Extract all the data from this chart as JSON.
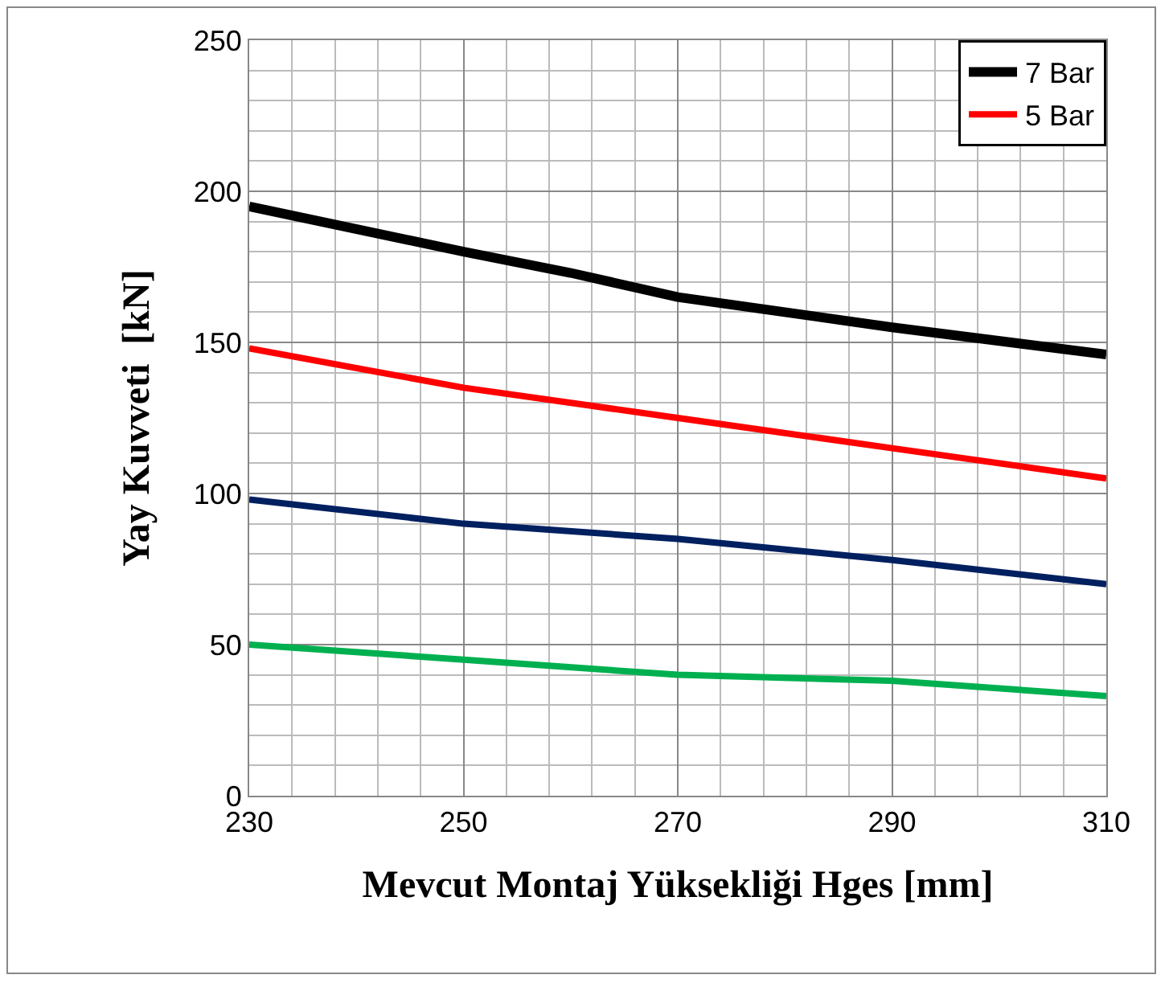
{
  "chart_data": {
    "type": "line",
    "xlabel": "Mevcut Montaj Yüksekliği Hges [mm]",
    "ylabel": "Yay Kuvveti  [kN]",
    "xlim": [
      230,
      310
    ],
    "xticks": [
      230,
      250,
      270,
      290,
      310
    ],
    "ylim": [
      0,
      250
    ],
    "yticks": [
      0,
      50,
      100,
      150,
      200,
      250
    ],
    "grid": true,
    "legend": "top right",
    "marker": "none",
    "line_style": "solid",
    "series": [
      {
        "name": "7 Bar",
        "color": "#000000",
        "x": [
          230,
          250,
          260,
          270,
          290,
          310
        ],
        "values": [
          195,
          180,
          173,
          165,
          155,
          146
        ]
      },
      {
        "name": "5 Bar",
        "color": "#ff0000",
        "x": [
          230,
          250,
          270,
          290,
          310
        ],
        "values": [
          148,
          135,
          125,
          115,
          105
        ]
      },
      {
        "color": "#002060",
        "x": [
          230,
          250,
          270,
          290,
          310
        ],
        "values": [
          98,
          90,
          85,
          78,
          70
        ]
      },
      {
        "color": "#00b050",
        "x": [
          230,
          250,
          270,
          290,
          310
        ],
        "values": [
          50,
          45,
          40,
          38,
          33
        ]
      }
    ]
  }
}
